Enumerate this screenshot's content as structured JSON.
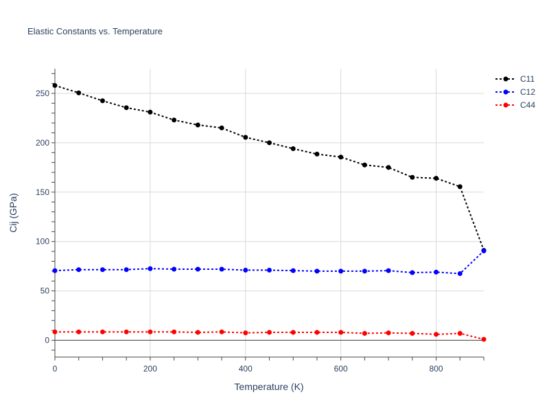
{
  "chart_data": {
    "type": "line",
    "title": "Elastic Constants vs. Temperature",
    "xlabel": "Temperature (K)",
    "ylabel": "Cij (GPa)",
    "xlim": [
      0,
      900
    ],
    "ylim": [
      -17,
      275
    ],
    "xticks": [
      0,
      200,
      400,
      600,
      800
    ],
    "yticks": [
      0,
      50,
      100,
      150,
      200,
      250
    ],
    "grid": true,
    "legend_position": "top-right",
    "line_style": "dotted",
    "x": [
      0,
      50,
      100,
      150,
      200,
      250,
      300,
      350,
      400,
      450,
      500,
      550,
      600,
      650,
      700,
      750,
      800,
      850,
      900
    ],
    "series": [
      {
        "name": "C11",
        "color": "#000000",
        "values": [
          258,
          250.5,
          242.5,
          235.5,
          231,
          223,
          218,
          215,
          205.5,
          200,
          194,
          188.5,
          185.5,
          177.5,
          175,
          165,
          164,
          155.5,
          91
        ]
      },
      {
        "name": "C12",
        "color": "#0000ff",
        "values": [
          70.5,
          71.5,
          71.5,
          71.5,
          72.5,
          72,
          72,
          72,
          71,
          71,
          70.5,
          70,
          70,
          70,
          70.5,
          68.5,
          69,
          67.5,
          90.5
        ]
      },
      {
        "name": "C44",
        "color": "#ff0000",
        "values": [
          8.5,
          8.5,
          8.5,
          8.5,
          8.5,
          8.5,
          8,
          8.5,
          7.5,
          8,
          8,
          8,
          8,
          7,
          7.5,
          7,
          6,
          7,
          1
        ]
      }
    ]
  }
}
